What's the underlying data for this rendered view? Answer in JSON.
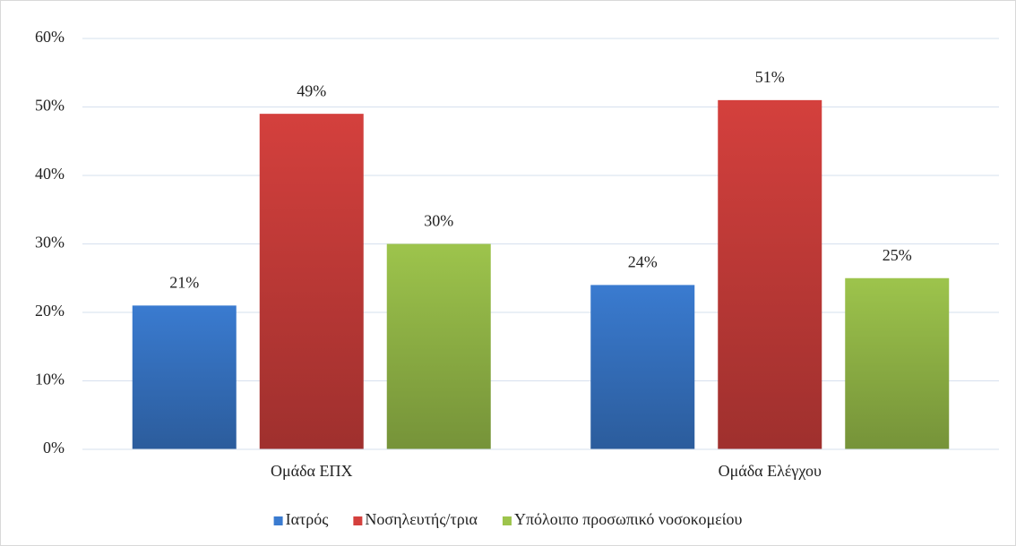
{
  "chart_data": {
    "type": "bar",
    "categories": [
      "Ομάδα ΕΠΧ",
      "Ομάδα Ελέγχου"
    ],
    "series": [
      {
        "name": "Ιατρός",
        "color": "#3a7bd0",
        "values": [
          21,
          24
        ],
        "value_labels": [
          "21%",
          "24%"
        ]
      },
      {
        "name": "Νοσηλευτής/τρια",
        "color": "#d4403d",
        "values": [
          49,
          51
        ],
        "value_labels": [
          "49%",
          "51%"
        ]
      },
      {
        "name": "Υπόλοιπο προσωπικό νοσοκομείου",
        "color": "#9dc44c",
        "values": [
          30,
          25
        ],
        "value_labels": [
          "30%",
          "25%"
        ]
      }
    ],
    "ylim": [
      0,
      60
    ],
    "yticks": [
      {
        "value": 0,
        "label": "0%"
      },
      {
        "value": 10,
        "label": "10%"
      },
      {
        "value": 20,
        "label": "20%"
      },
      {
        "value": 30,
        "label": "30%"
      },
      {
        "value": 40,
        "label": "40%"
      },
      {
        "value": 50,
        "label": "50%"
      },
      {
        "value": 60,
        "label": "60%"
      }
    ],
    "grid": true,
    "legend": "bottom"
  }
}
